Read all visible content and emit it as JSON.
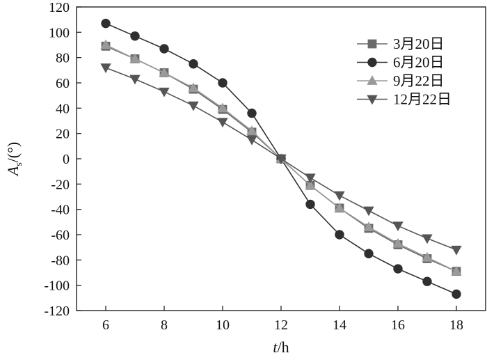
{
  "chart_data": {
    "type": "line",
    "title": "",
    "xlabel": "t/h",
    "ylabel": "As/(°)",
    "xlim": [
      5,
      19
    ],
    "ylim": [
      -120,
      120
    ],
    "xticks": [
      6,
      8,
      10,
      12,
      14,
      16,
      18
    ],
    "yticks": [
      -120,
      -100,
      -80,
      -60,
      -40,
      -20,
      0,
      20,
      40,
      60,
      80,
      100,
      120
    ],
    "grid": false,
    "legend_position": "top-right",
    "x": [
      6,
      7,
      8,
      9,
      10,
      11,
      12,
      13,
      14,
      15,
      16,
      17,
      18
    ],
    "series": [
      {
        "name": "3月20日",
        "marker": "square",
        "color": "#6a6a6a",
        "values": [
          89,
          79,
          68,
          55,
          39,
          21,
          0,
          -21,
          -39,
          -55,
          -68,
          -79,
          -89
        ]
      },
      {
        "name": "6月20日",
        "marker": "circle",
        "color": "#2f2f2f",
        "values": [
          107,
          97,
          87,
          75,
          60,
          36,
          0,
          -36,
          -60,
          -75,
          -87,
          -97,
          -107
        ]
      },
      {
        "name": "9月22日",
        "marker": "triangle-up",
        "color": "#9a9a9a",
        "values": [
          90,
          79,
          68,
          56,
          40,
          22,
          0,
          -21,
          -39,
          -54,
          -67,
          -78,
          -89
        ]
      },
      {
        "name": "12月22日",
        "marker": "triangle-down",
        "color": "#555555",
        "values": [
          72,
          63,
          53,
          42,
          29,
          15,
          0,
          -15,
          -29,
          -41,
          -53,
          -63,
          -72
        ]
      }
    ]
  }
}
